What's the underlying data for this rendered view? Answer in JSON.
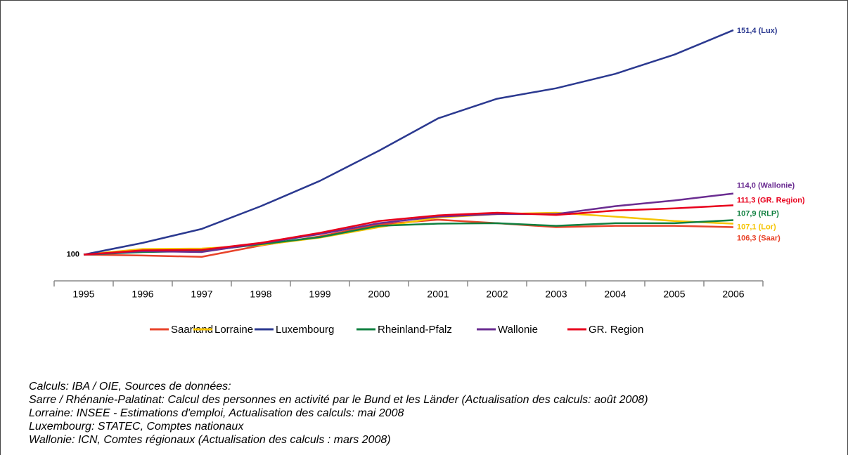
{
  "chart_data": {
    "type": "line",
    "categories": [
      "1995",
      "1996",
      "1997",
      "1998",
      "1999",
      "2000",
      "2001",
      "2002",
      "2003",
      "2004",
      "2005",
      "2006"
    ],
    "ylim": [
      94,
      153
    ],
    "series": [
      {
        "name": "Saarland",
        "color": "#e8432a",
        "values": [
          100,
          99.8,
          99.5,
          102.1,
          104.2,
          106.9,
          108.0,
          107.2,
          106.3,
          106.6,
          106.6,
          106.3
        ],
        "value_labels": [
          null,
          null,
          null,
          null,
          null,
          null,
          null,
          null,
          null,
          null,
          null,
          "106,3 (Saar)"
        ]
      },
      {
        "name": "Lorraine",
        "color": "#f5c400",
        "values": [
          100,
          101.3,
          101.4,
          102.2,
          103.9,
          106.3,
          108.5,
          109.3,
          109.6,
          108.7,
          107.7,
          107.1
        ],
        "value_labels": [
          null,
          null,
          null,
          null,
          null,
          null,
          null,
          null,
          null,
          null,
          null,
          "107,1 (Lor)"
        ]
      },
      {
        "name": "Luxembourg",
        "color": "#2b3990",
        "values": [
          100,
          102.7,
          105.9,
          111.1,
          116.9,
          123.8,
          131.2,
          135.7,
          138.1,
          141.4,
          145.8,
          151.4
        ],
        "value_labels": [
          "100",
          null,
          null,
          null,
          null,
          null,
          null,
          null,
          null,
          null,
          null,
          "151,4 (Lux)"
        ]
      },
      {
        "name": "Rheinland-Pfalz",
        "color": "#108040",
        "values": [
          100,
          100.6,
          100.8,
          102.4,
          104.0,
          106.6,
          107.1,
          107.2,
          106.6,
          107.2,
          107.2,
          107.9
        ],
        "value_labels": [
          null,
          null,
          null,
          null,
          null,
          null,
          null,
          null,
          null,
          null,
          null,
          "107,9 (RLP)"
        ]
      },
      {
        "name": "Wallonie",
        "color": "#6a2c91",
        "values": [
          100,
          100.8,
          100.6,
          102.6,
          104.7,
          107.2,
          108.7,
          109.3,
          109.3,
          111.1,
          112.4,
          114.0
        ],
        "value_labels": [
          null,
          null,
          null,
          null,
          null,
          null,
          null,
          null,
          null,
          null,
          null,
          "114,0 (Wallonie)"
        ]
      },
      {
        "name": "GR. Region",
        "color": "#e8001c",
        "values": [
          100,
          101.0,
          101.1,
          102.7,
          105.0,
          107.7,
          109.0,
          109.6,
          109.1,
          110.1,
          110.6,
          111.3
        ],
        "value_labels": [
          null,
          null,
          null,
          null,
          null,
          null,
          null,
          null,
          null,
          null,
          null,
          "111,3 (GR. Region)"
        ]
      }
    ],
    "notes": [
      "Calculs: IBA / OIE, Sources de données:",
      "Sarre / Rhénanie-Palatinat: Calcul des personnes en activité par le Bund et les Länder (Actualisation des calculs: août 2008)",
      "Lorraine: INSEE - Estimations d'emploi, Actualisation des calculs: mai 2008",
      "Luxembourg: STATEC, Comptes nationaux",
      "Wallonie: ICN, Comtes régionaux (Actualisation des calculs : mars 2008)"
    ]
  }
}
